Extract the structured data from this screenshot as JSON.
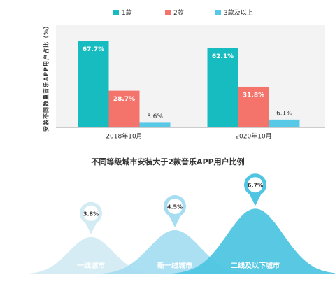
{
  "chart_data": [
    {
      "type": "bar",
      "y_label": "安装不同数量音乐APP用户占比（%）",
      "categories": [
        "2018年10月",
        "2020年10月"
      ],
      "series": [
        {
          "name": "1款",
          "color": "#17bcc1",
          "values": [
            67.7,
            62.1
          ],
          "value_labels": [
            "67.7%",
            "62.1%"
          ]
        },
        {
          "name": "2款",
          "color": "#f4736b",
          "values": [
            28.7,
            31.8
          ],
          "value_labels": [
            "28.7%",
            "31.8%"
          ]
        },
        {
          "name": "3款及以上",
          "color": "#57c8e6",
          "values": [
            3.6,
            6.1
          ],
          "value_labels": [
            "3.6%",
            "6.1%"
          ]
        }
      ],
      "ylim": [
        0,
        80
      ],
      "legend": "top"
    },
    {
      "type": "bell",
      "title": "不同等级城市安装大于2款音乐APP用户比例",
      "categories": [
        "一线城市",
        "新一线城市",
        "二线及以下城市"
      ],
      "values": [
        3.8,
        4.5,
        6.7
      ],
      "value_labels": [
        "3.8%",
        "4.5%",
        "6.7%"
      ],
      "colors": [
        "#d3ebf3",
        "#a6ddf1",
        "#4fc5e2"
      ]
    }
  ]
}
